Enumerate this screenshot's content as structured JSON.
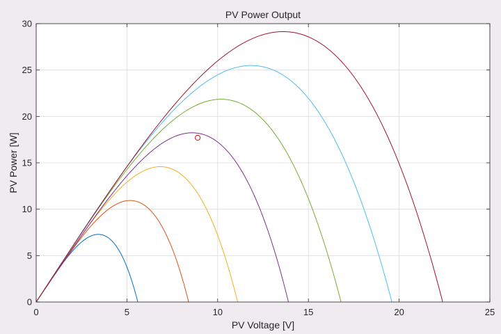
{
  "chart_data": {
    "type": "line",
    "title": "PV Power Output",
    "xlabel": "PV Voltage [V]",
    "ylabel": "PV Power [W]",
    "xlim": [
      0,
      25
    ],
    "ylim": [
      0,
      30
    ],
    "xticks": [
      0,
      5,
      10,
      15,
      20,
      25
    ],
    "yticks": [
      0,
      5,
      10,
      15,
      20,
      25,
      30
    ],
    "grid": true,
    "legend": "none",
    "series": [
      {
        "color": "#0072bd",
        "voc": 5.6,
        "vmp": 3.7,
        "pmax": 7.2
      },
      {
        "color": "#d95319",
        "voc": 8.4,
        "vmp": 5.6,
        "pmax": 10.8
      },
      {
        "color": "#edb120",
        "voc": 11.1,
        "vmp": 7.4,
        "pmax": 14.4
      },
      {
        "color": "#7e2f8e",
        "voc": 13.9,
        "vmp": 9.3,
        "pmax": 18.0
      },
      {
        "color": "#77ac30",
        "voc": 16.8,
        "vmp": 11.0,
        "pmax": 21.6
      },
      {
        "color": "#4dbeee",
        "voc": 19.6,
        "vmp": 12.8,
        "pmax": 25.2
      },
      {
        "color": "#a2142f",
        "voc": 22.4,
        "vmp": 14.7,
        "pmax": 28.8
      }
    ],
    "markers": [
      {
        "x": 8.9,
        "y": 17.7,
        "color": "#ff0000",
        "shape": "circle"
      }
    ]
  }
}
